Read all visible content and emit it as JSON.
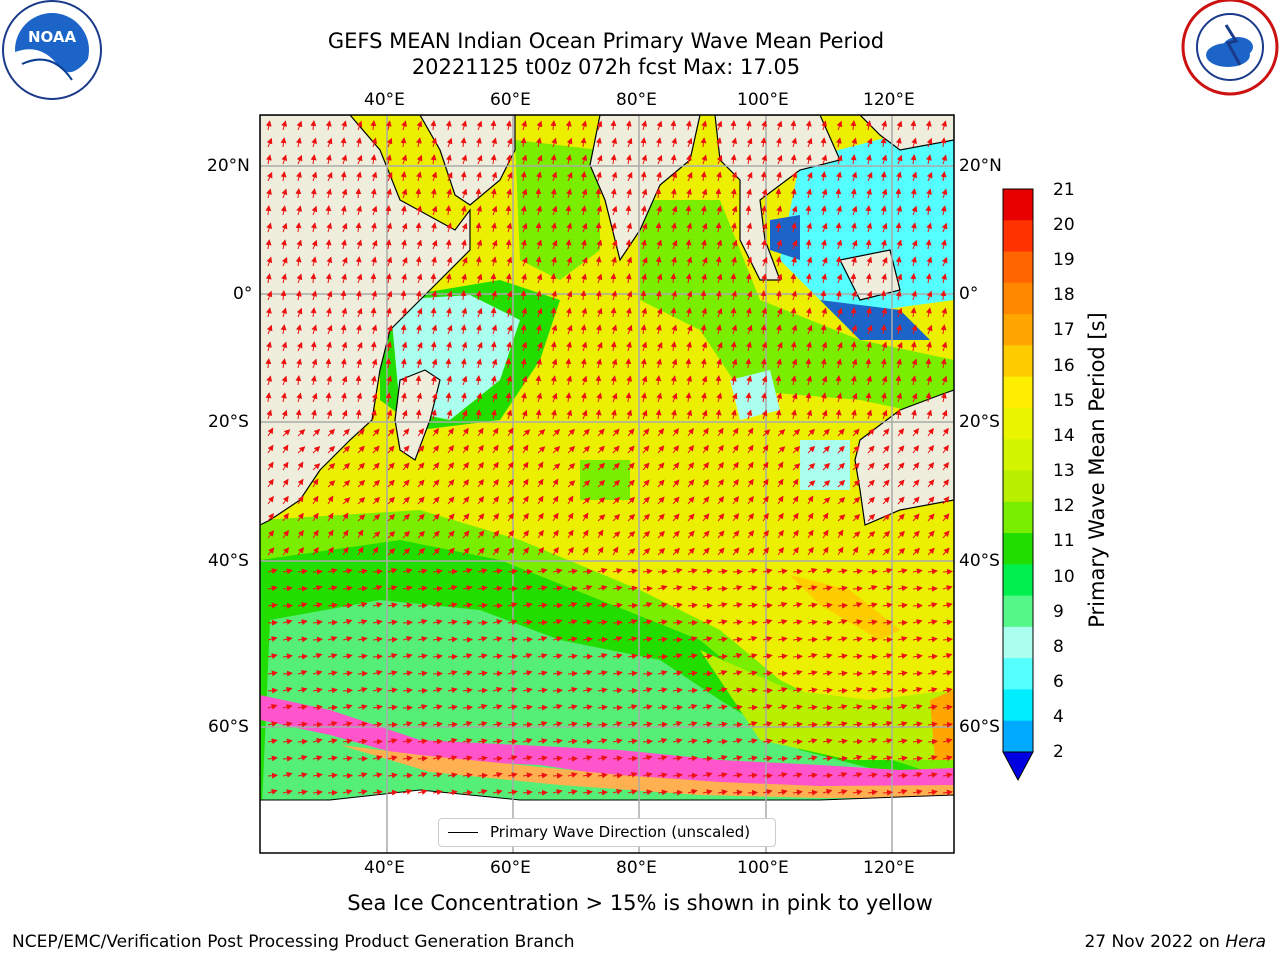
{
  "title_line1": "GEFS MEAN Indian Ocean Primary Wave Mean Period",
  "title_line2": "20221125 t00z 072h fcst   Max: 17.05",
  "lon_labels": [
    "40°E",
    "60°E",
    "80°E",
    "100°E",
    "120°E"
  ],
  "lat_labels": [
    "20°N",
    "0°",
    "20°S",
    "40°S",
    "60°S"
  ],
  "colorbar": {
    "label": "Primary Wave Mean Period [s]",
    "ticks": [
      "21",
      "20",
      "19",
      "18",
      "17",
      "16",
      "15",
      "14",
      "13",
      "12",
      "11",
      "10",
      "9",
      "8",
      "6",
      "4",
      "2"
    ],
    "colors": [
      "#e60000",
      "#ff3300",
      "#ff6600",
      "#ff8800",
      "#ffa600",
      "#ffcc00",
      "#ffee00",
      "#ecf500",
      "#d4f500",
      "#b8f000",
      "#7aee00",
      "#22dd00",
      "#00f050",
      "#55f888",
      "#aaffee",
      "#55ffff",
      "#00eeff",
      "#00aaff"
    ],
    "extend": "min"
  },
  "legend_label": "Primary Wave Direction (unscaled)",
  "caption": "Sea Ice Concentration > 15% is shown in pink to yellow",
  "footer_left": "NCEP/EMC/Verification Post Processing Product Generation Branch",
  "footer_date": "27 Nov 2022 on ",
  "footer_host": "Hera",
  "logos": {
    "left": "NOAA",
    "left_ring": "NATIONAL OCEANIC AND ATMOSPHERIC ADMINISTRATION · U.S. DEPARTMENT OF COMMERCE",
    "right_ring": "NATIONAL WEATHER SERVICE"
  }
}
